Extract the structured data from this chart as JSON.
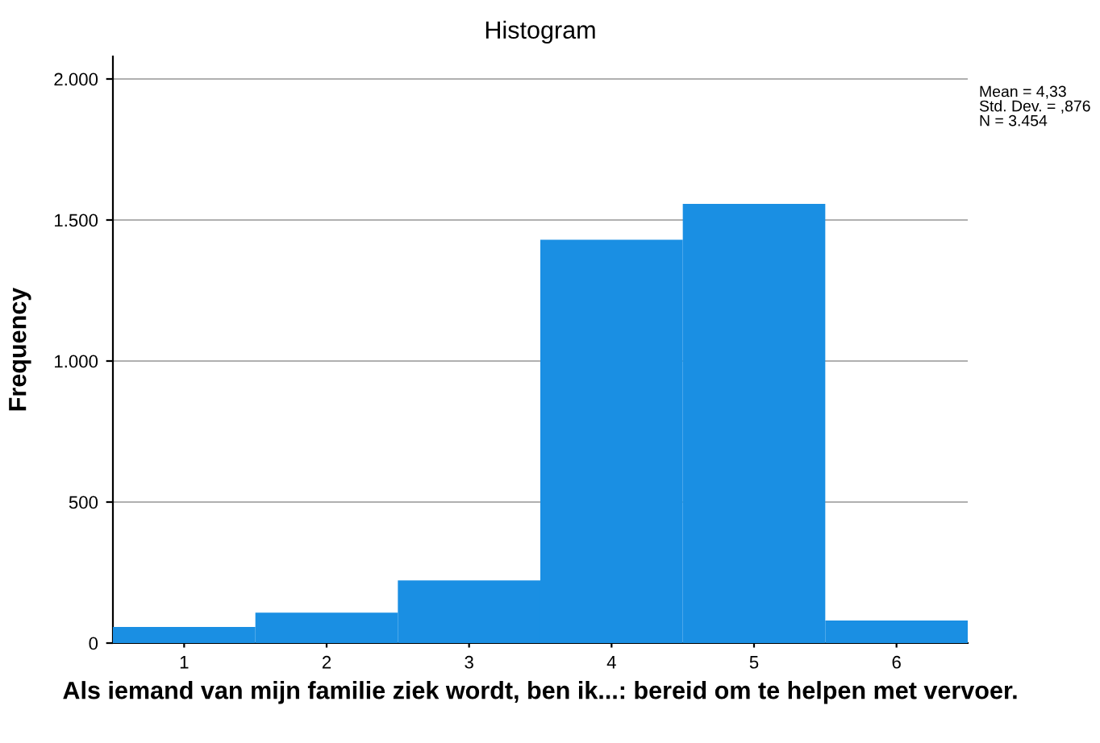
{
  "chart_data": {
    "type": "histogram",
    "title": "Histogram",
    "xlabel": "Als iemand van mijn familie ziek wordt, ben ik...: bereid om te helpen met vervoer.",
    "ylabel": "Frequency",
    "bins": [
      0.5,
      1.5,
      2.5,
      3.5,
      4.5,
      5.5,
      6.5
    ],
    "values": [
      57,
      108,
      222,
      1430,
      1557,
      80
    ],
    "color": "#1a8fe3",
    "xlim": [
      0.5,
      6.5
    ],
    "xticks": [
      1,
      2,
      3,
      4,
      5,
      6
    ],
    "ylim": [
      0,
      2080
    ],
    "yticks": [
      0,
      500,
      {
        "value": 1000,
        "label": "1.000"
      },
      {
        "value": 1500,
        "label": "1.500"
      },
      {
        "value": 2000,
        "label": "2.000"
      }
    ],
    "grid": "y",
    "annotations": [
      "Mean = 4,33\nStd. Dev. = ,876\nN = 3.454"
    ]
  }
}
